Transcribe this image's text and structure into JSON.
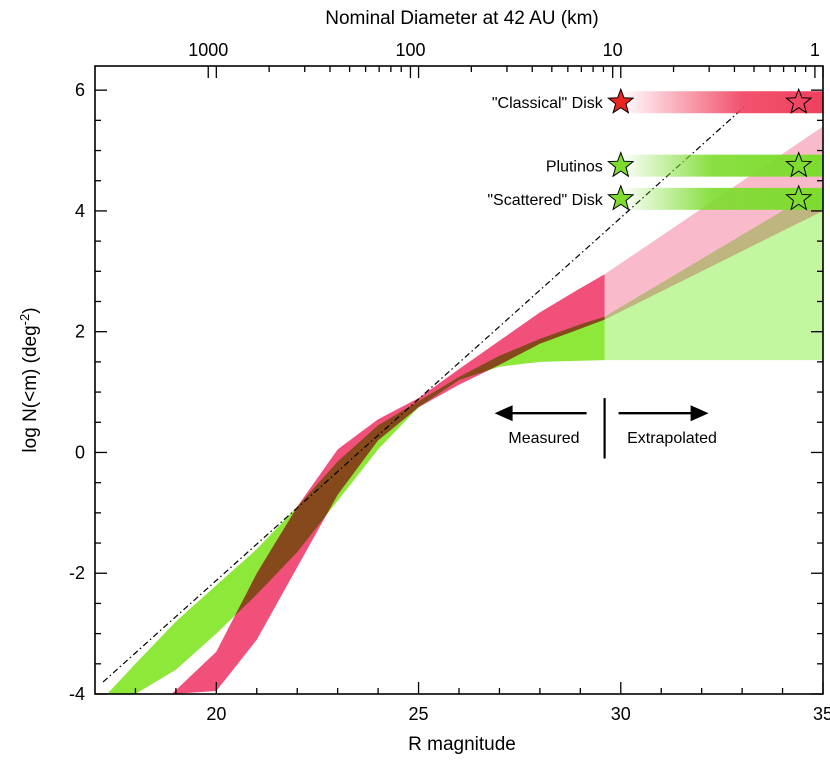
{
  "chart_data": {
    "type": "area",
    "title": "Nominal Diameter at 42 AU (km)",
    "xlabel": "R magnitude",
    "ylabel_main": "log N(<m)  (deg",
    "ylabel_sup": "-2",
    "ylabel_close": ")",
    "xlim": [
      17,
      35
    ],
    "ylim": [
      -4,
      6.4
    ],
    "x_ticks": [
      20,
      25,
      30,
      35
    ],
    "y_ticks": [
      6,
      4,
      2,
      0,
      -2,
      -4
    ],
    "x_tick_labels": [
      "20",
      "25",
      "30",
      "35"
    ],
    "y_tick_labels": [
      "6",
      "4",
      "2",
      "0",
      "-2",
      "-4"
    ],
    "top_axis": {
      "label": "Nominal Diameter at 42 AU (km)",
      "ticks": [
        {
          "diameter_km": 1000,
          "mag": 19.8,
          "label": "1000"
        },
        {
          "diameter_km": 100,
          "mag": 24.8,
          "label": "100"
        },
        {
          "diameter_km": 10,
          "mag": 29.8,
          "label": "10"
        },
        {
          "diameter_km": 1,
          "mag": 34.8,
          "label": "1"
        }
      ]
    },
    "series": [
      {
        "name": "Classical Disk (measured)",
        "color": "#f0507a",
        "x": [
          18.9,
          20,
          21,
          22,
          23,
          24,
          25,
          26,
          27,
          28,
          29,
          29.6
        ],
        "y_low": [
          -4.0,
          -3.95,
          -3.1,
          -1.9,
          -0.7,
          0.2,
          0.75,
          1.12,
          1.45,
          1.8,
          2.05,
          2.2
        ],
        "y_high": [
          -4.0,
          -3.3,
          -2.0,
          -0.9,
          0.05,
          0.55,
          0.9,
          1.38,
          1.85,
          2.32,
          2.72,
          2.95
        ]
      },
      {
        "name": "Scattered/Plutino (measured)",
        "color": "#8ee83a",
        "x": [
          17.3,
          18,
          19,
          20,
          21,
          22,
          23,
          24,
          25,
          26,
          27,
          28,
          29,
          29.6
        ],
        "y_low": [
          -4.0,
          -4.0,
          -3.6,
          -3.0,
          -2.35,
          -1.65,
          -0.8,
          0.05,
          0.75,
          1.2,
          1.42,
          1.5,
          1.52,
          1.53
        ],
        "y_high": [
          -4.0,
          -3.5,
          -2.8,
          -2.2,
          -1.6,
          -0.9,
          -0.15,
          0.45,
          0.85,
          1.25,
          1.6,
          1.88,
          2.12,
          2.25
        ]
      },
      {
        "name": "Classical Disk (extrapolated)",
        "color": "#f9b7c9",
        "x": [
          29.6,
          35
        ],
        "y_low": [
          2.2,
          4.0
        ],
        "y_high": [
          2.95,
          5.4
        ]
      },
      {
        "name": "Scattered/Plutino (extrapolated)",
        "color": "#bff59a",
        "x": [
          29.6,
          35
        ],
        "y_low": [
          1.53,
          1.53
        ],
        "y_high": [
          2.25,
          4.4
        ]
      }
    ],
    "reference_line": {
      "style": "dash-dot",
      "x": [
        17.2,
        33.1
      ],
      "y": [
        -3.8,
        5.75
      ]
    },
    "population_levels": [
      {
        "name": "\"Classical\" Disk",
        "y": 5.8,
        "star_color": "#e8261e",
        "band_color": "#f0405e",
        "x_start": 30,
        "x_end": 34.4
      },
      {
        "name": "Plutinos",
        "y": 4.75,
        "star_color": "#7ddc2e",
        "band_color": "#7ddc2e",
        "x_start": 30,
        "x_end": 34.4
      },
      {
        "name": "\"Scattered\" Disk",
        "y": 4.2,
        "star_color": "#7ddc2e",
        "band_color": "#7ddc2e",
        "x_start": 30,
        "x_end": 34.4
      }
    ],
    "annotations": {
      "divider_mag": 29.6,
      "measured": "Measured",
      "extrapolated": "Extrapolated"
    }
  }
}
